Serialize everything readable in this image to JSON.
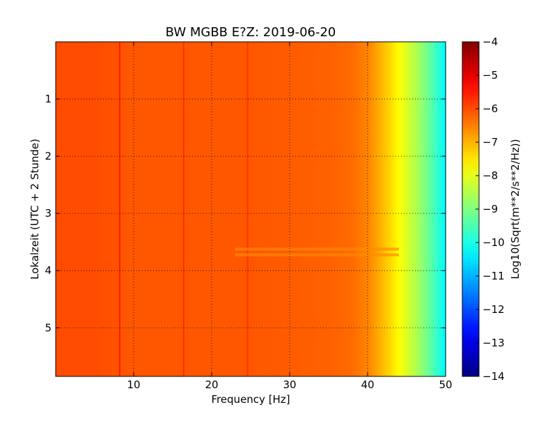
{
  "chart_data": {
    "type": "heatmap",
    "title": "BW MGBB E?Z: 2019-06-20",
    "xlabel": "Frequency [Hz]",
    "ylabel": "Lokalzeit (UTC + 2 Stunde)",
    "xlim": [
      0,
      50
    ],
    "ylim": [
      5.85,
      0
    ],
    "x_ticks": [
      "10",
      "20",
      "30",
      "40",
      "50"
    ],
    "y_ticks": [
      "1",
      "2",
      "3",
      "4",
      "5"
    ],
    "x_tick_values": [
      10,
      20,
      30,
      40,
      50
    ],
    "y_tick_values": [
      1,
      2,
      3,
      4,
      5
    ],
    "grid": true,
    "colormap": "jet",
    "colorbar": {
      "label": "Log10(Sqrt(m**2/s**2/Hz))",
      "range": [
        -14,
        -4
      ],
      "ticks": [
        "−4",
        "−5",
        "−6",
        "−7",
        "−8",
        "−9",
        "−10",
        "−11",
        "−12",
        "−13",
        "−14"
      ],
      "tick_values": [
        -4,
        -5,
        -6,
        -7,
        -8,
        -9,
        -10,
        -11,
        -12,
        -13,
        -14
      ]
    },
    "frequency_profile": {
      "frequency_hz": [
        0,
        5,
        10,
        15,
        20,
        25,
        30,
        35,
        38,
        40,
        41,
        42,
        43,
        44,
        45,
        46,
        47,
        48,
        49,
        50
      ],
      "log10_level": [
        -6.0,
        -6.0,
        -6.1,
        -6.1,
        -6.1,
        -6.1,
        -6.15,
        -6.2,
        -6.3,
        -6.55,
        -6.8,
        -7.1,
        -7.4,
        -7.75,
        -8.1,
        -8.45,
        -8.85,
        -9.3,
        -9.8,
        -10.3
      ]
    },
    "spectral_lines": [
      {
        "frequency_hz": 8.2,
        "log10_level": -5.5
      },
      {
        "frequency_hz": 16.4,
        "log10_level": -5.7
      },
      {
        "frequency_hz": 24.6,
        "log10_level": -5.75
      }
    ],
    "time_bands": [
      {
        "start_h": 3.6,
        "end_h": 3.65,
        "freq_range_hz": [
          23,
          44
        ],
        "log10_level": -6.6
      },
      {
        "start_h": 3.7,
        "end_h": 3.75,
        "freq_range_hz": [
          23,
          44
        ],
        "log10_level": -6.6
      }
    ]
  }
}
